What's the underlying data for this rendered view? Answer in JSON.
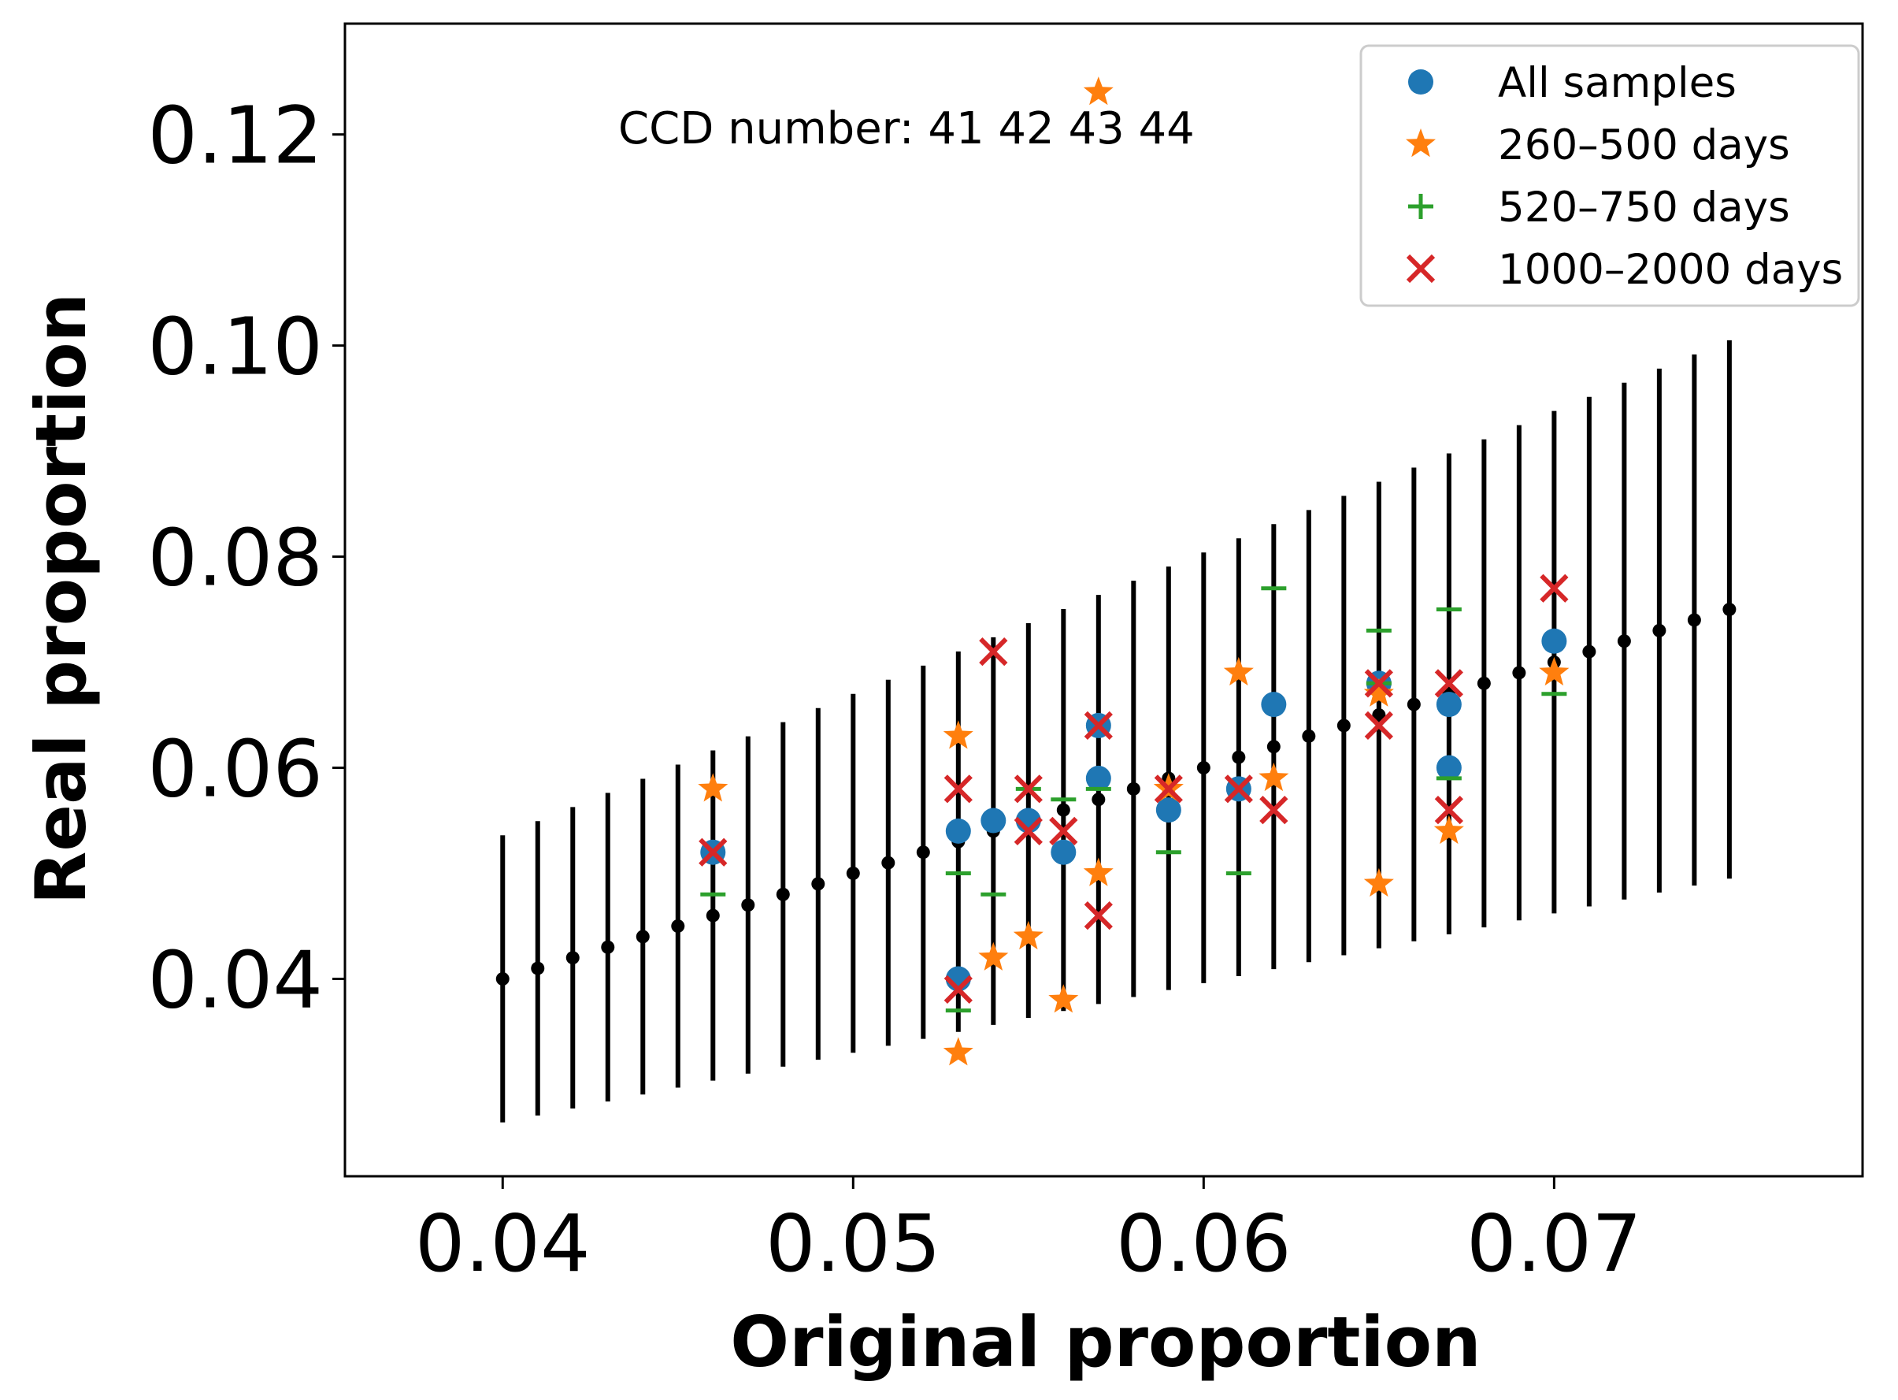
{
  "chart_data": {
    "type": "scatter",
    "title": "",
    "xlabel": "Original proportion",
    "ylabel": "Real proportion",
    "annotation": "CCD number: 41 42 43 44",
    "xlim": [
      0.0355,
      0.0788
    ],
    "ylim": [
      0.0213,
      0.1305
    ],
    "xticks": [
      0.04,
      0.05,
      0.06,
      0.07
    ],
    "xtick_labels": [
      "0.04",
      "0.05",
      "0.06",
      "0.07"
    ],
    "yticks": [
      0.04,
      0.06,
      0.08,
      0.1,
      0.12
    ],
    "ytick_labels": [
      "0.04",
      "0.06",
      "0.08",
      "0.10",
      "0.12"
    ],
    "grid": false,
    "legend_position": "top-right",
    "reference": {
      "x_start": 0.04,
      "x_step": 0.001,
      "x_end": 0.075,
      "slope": 1.0,
      "error_relative": 0.34,
      "color": "#000000"
    },
    "series": [
      {
        "name": "All samples",
        "marker": "circle",
        "color": "#1f77b4",
        "points": [
          [
            0.046,
            0.052
          ],
          [
            0.053,
            0.054
          ],
          [
            0.053,
            0.04
          ],
          [
            0.054,
            0.055
          ],
          [
            0.055,
            0.055
          ],
          [
            0.056,
            0.052
          ],
          [
            0.057,
            0.059
          ],
          [
            0.057,
            0.064
          ],
          [
            0.059,
            0.056
          ],
          [
            0.061,
            0.058
          ],
          [
            0.062,
            0.066
          ],
          [
            0.065,
            0.068
          ],
          [
            0.067,
            0.066
          ],
          [
            0.067,
            0.06
          ],
          [
            0.07,
            0.072
          ]
        ]
      },
      {
        "name": "260–500 days",
        "marker": "star",
        "color": "#ff7f0e",
        "points": [
          [
            0.046,
            0.058
          ],
          [
            0.053,
            0.063
          ],
          [
            0.053,
            0.033
          ],
          [
            0.054,
            0.042
          ],
          [
            0.055,
            0.044
          ],
          [
            0.056,
            0.038
          ],
          [
            0.057,
            0.124
          ],
          [
            0.057,
            0.05
          ],
          [
            0.059,
            0.058
          ],
          [
            0.061,
            0.069
          ],
          [
            0.062,
            0.059
          ],
          [
            0.065,
            0.049
          ],
          [
            0.065,
            0.067
          ],
          [
            0.067,
            0.054
          ],
          [
            0.07,
            0.069
          ]
        ]
      },
      {
        "name": "520–750 days",
        "marker": "plus",
        "color": "#2ca02c",
        "points": [
          [
            0.046,
            0.048
          ],
          [
            0.053,
            0.05
          ],
          [
            0.053,
            0.037
          ],
          [
            0.054,
            0.048
          ],
          [
            0.055,
            0.058
          ],
          [
            0.056,
            0.057
          ],
          [
            0.057,
            0.058
          ],
          [
            0.059,
            0.052
          ],
          [
            0.061,
            0.05
          ],
          [
            0.062,
            0.077
          ],
          [
            0.065,
            0.073
          ],
          [
            0.065,
            0.068
          ],
          [
            0.067,
            0.075
          ],
          [
            0.067,
            0.059
          ],
          [
            0.07,
            0.067
          ]
        ]
      },
      {
        "name": "1000–2000 days",
        "marker": "x",
        "color": "#d62728",
        "points": [
          [
            0.046,
            0.052
          ],
          [
            0.053,
            0.058
          ],
          [
            0.053,
            0.039
          ],
          [
            0.054,
            0.071
          ],
          [
            0.055,
            0.058
          ],
          [
            0.055,
            0.054
          ],
          [
            0.056,
            0.054
          ],
          [
            0.057,
            0.064
          ],
          [
            0.057,
            0.046
          ],
          [
            0.059,
            0.058
          ],
          [
            0.061,
            0.058
          ],
          [
            0.062,
            0.056
          ],
          [
            0.065,
            0.068
          ],
          [
            0.065,
            0.064
          ],
          [
            0.067,
            0.068
          ],
          [
            0.067,
            0.056
          ],
          [
            0.07,
            0.077
          ]
        ]
      }
    ]
  }
}
